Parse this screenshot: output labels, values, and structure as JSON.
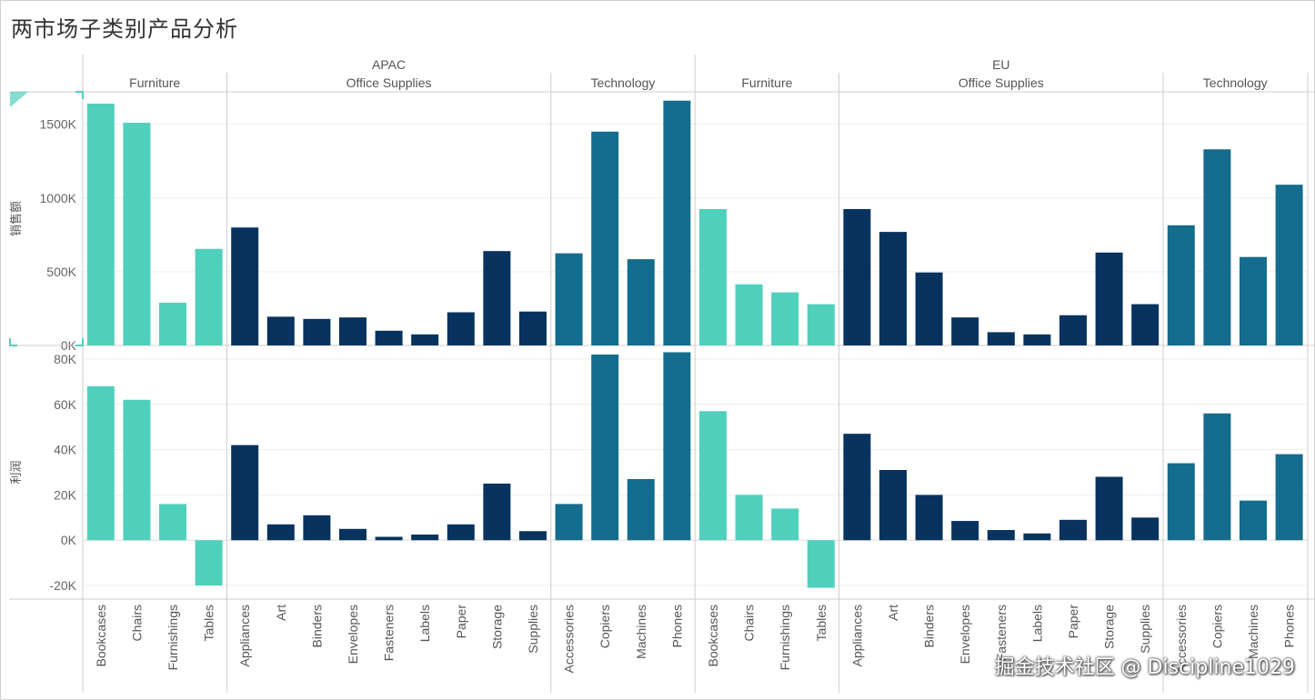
{
  "title": "两市场子类别产品分析",
  "watermark": "掘金技术社区 @ Discipline1029",
  "colors": {
    "Furniture": "#50d0bc",
    "Office Supplies": "#07335e",
    "Technology": "#146d8c",
    "grid": "#eeeeee",
    "divider": "#cccccc"
  },
  "chart_data": {
    "type": "bar",
    "title": "两市场子类别产品分析",
    "markets": [
      {
        "name": "APAC",
        "categories": [
          {
            "name": "Furniture",
            "subcategories": [
              "Bookcases",
              "Chairs",
              "Furnishings",
              "Tables"
            ],
            "sales": [
              1640,
              1510,
              290,
              655
            ],
            "profit": [
              68,
              62,
              16,
              -20
            ]
          },
          {
            "name": "Office Supplies",
            "subcategories": [
              "Appliances",
              "Art",
              "Binders",
              "Envelopes",
              "Fasteners",
              "Labels",
              "Paper",
              "Storage",
              "Supplies"
            ],
            "sales": [
              800,
              195,
              180,
              190,
              100,
              75,
              225,
              640,
              230
            ],
            "profit": [
              42,
              7,
              11,
              5,
              1.5,
              2.5,
              7,
              25,
              4
            ]
          },
          {
            "name": "Technology",
            "subcategories": [
              "Accessories",
              "Copiers",
              "Machines",
              "Phones"
            ],
            "sales": [
              625,
              1450,
              585,
              1660
            ],
            "profit": [
              16,
              82,
              27,
              83
            ]
          }
        ]
      },
      {
        "name": "EU",
        "categories": [
          {
            "name": "Furniture",
            "subcategories": [
              "Bookcases",
              "Chairs",
              "Furnishings",
              "Tables"
            ],
            "sales": [
              925,
              415,
              360,
              280
            ],
            "profit": [
              57,
              20,
              14,
              -21
            ]
          },
          {
            "name": "Office Supplies",
            "subcategories": [
              "Appliances",
              "Art",
              "Binders",
              "Envelopes",
              "Fasteners",
              "Labels",
              "Paper",
              "Storage",
              "Supplies"
            ],
            "sales": [
              925,
              770,
              495,
              190,
              90,
              75,
              205,
              630,
              280
            ],
            "profit": [
              47,
              31,
              20,
              8.5,
              4.5,
              3,
              9,
              28,
              10
            ]
          },
          {
            "name": "Technology",
            "subcategories": [
              "Accessories",
              "Copiers",
              "Machines",
              "Phones"
            ],
            "sales": [
              815,
              1330,
              600,
              1090
            ],
            "profit": [
              34,
              56,
              17.5,
              38
            ]
          }
        ]
      }
    ],
    "measures": [
      {
        "name": "销售额",
        "unit": "K",
        "ylim": [
          0,
          1720
        ],
        "ticks": [
          0,
          500,
          1000,
          1500
        ],
        "tick_labels": [
          "0K",
          "500K",
          "1000K",
          "1500K"
        ]
      },
      {
        "name": "利润",
        "unit": "K",
        "ylim": [
          -26,
          86
        ],
        "ticks": [
          -20,
          0,
          20,
          40,
          60,
          80
        ],
        "tick_labels": [
          "-20K",
          "0K",
          "20K",
          "40K",
          "60K",
          "80K"
        ]
      }
    ]
  }
}
